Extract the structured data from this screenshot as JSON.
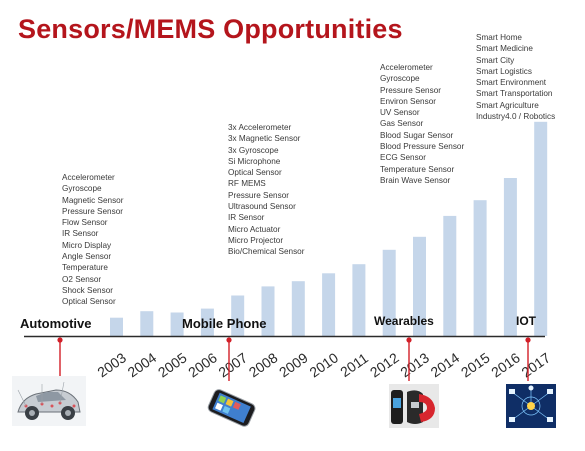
{
  "title": "Sensors/MEMS Opportunities",
  "colors": {
    "title": "#b4151c",
    "bar": "#c5d6ea",
    "axis": "#2b2b2b",
    "marker": "#d21f28",
    "text": "#3a3a3a"
  },
  "lists": {
    "automotive": [
      "Accelerometer",
      "Gyroscope",
      "Magnetic Sensor",
      "Pressure Sensor",
      "Flow Sensor",
      "IR Sensor",
      "Micro Display",
      "Angle Sensor",
      "Temperature",
      "O2 Sensor",
      "Shock Sensor",
      "Optical Sensor"
    ],
    "mobile": [
      "3x Accelerometer",
      "3x Magnetic Sensor",
      "3x Gyroscope",
      "Si Microphone",
      "Optical Sensor",
      "RF MEMS",
      "Pressure Sensor",
      "Ultrasound Sensor",
      "IR Sensor",
      "Micro Actuator",
      "Micro Projector",
      "Bio/Chemical Sensor"
    ],
    "wearables": [
      "Accelerometer",
      "Gyroscope",
      "Pressure Sensor",
      "Environ Sensor",
      "UV Sensor",
      "Gas Sensor",
      "Blood Sugar Sensor",
      "Blood Pressure Sensor",
      "ECG Sensor",
      "Temperature Sensor",
      "Brain Wave Sensor"
    ],
    "iot": [
      "Smart Home",
      "Smart Medicine",
      "Smart City",
      "Smart Logistics",
      "Smart Environment",
      "Smart Transportation",
      "Smart Agriculture",
      "Industry4.0 / Robotics"
    ]
  },
  "eras": [
    {
      "label": "Automotive",
      "year": "2003",
      "icon": "car-icon"
    },
    {
      "label": "Mobile Phone",
      "year": "2007",
      "icon": "smartphone-icon"
    },
    {
      "label": "Wearables",
      "year": "2013",
      "icon": "wearable-band-icon"
    },
    {
      "label": "IOT",
      "year": "2017",
      "icon": "iot-network-icon"
    }
  ],
  "chart_data": {
    "type": "bar",
    "categories": [
      "2003",
      "2004",
      "2005",
      "2006",
      "2007",
      "2008",
      "2009",
      "2010",
      "2011",
      "2012",
      "2013",
      "2014",
      "2015",
      "2016",
      "2017"
    ],
    "values": [
      14,
      19,
      18,
      21,
      31,
      38,
      42,
      48,
      55,
      66,
      76,
      92,
      104,
      121,
      164
    ],
    "ylim": [
      0,
      170
    ],
    "grid": false,
    "legend": "none"
  }
}
